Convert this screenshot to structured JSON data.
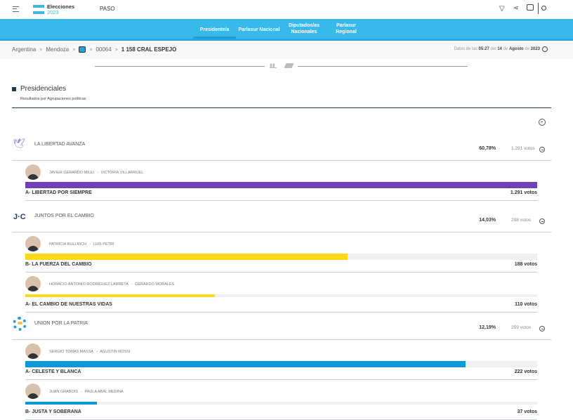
{
  "header": {
    "brand_title": "Elecciones",
    "brand_year": "2023",
    "election": "PASO",
    "icons": [
      "menu-icon",
      "filter-icon",
      "share-icon",
      "print-icon",
      "search-icon"
    ]
  },
  "nav": {
    "tabs": [
      {
        "label": "Presidente/a",
        "active": true
      },
      {
        "label": "Parlasur Nacional"
      },
      {
        "label": "Diputados/as Nacionales"
      },
      {
        "label": "Parlasur Regional"
      }
    ]
  },
  "breadcrumb": {
    "items": [
      "Argentina",
      "Mendoza",
      "00064",
      "1 158 CRAL ESPEJO"
    ],
    "separator": ">"
  },
  "update": {
    "prefix": "Datos de las",
    "time": "05:27",
    "del": "del",
    "day": "14",
    "de": "de",
    "month": "Agosto",
    "de2": "de",
    "year": "2023"
  },
  "section": {
    "title": "Presidenciales",
    "subtitle": "Resultados por Agrupaciones políticas"
  },
  "colors": {
    "nav": "#37b9e9",
    "lla": "#7040b5",
    "jxc": "#fcd817",
    "uxp": "#0b98d9"
  },
  "parties": [
    {
      "name": "LA LIBERTAD AVANZA",
      "percent": "60,78%",
      "votes": "1.291 votos",
      "color": "#7040b5",
      "logo": "dove-logo",
      "lists": [
        {
          "candidates": "JAVIER GERARDO MILEI",
          "vice": "VICTORIA VILLARRUEL",
          "list": "A- LIBERTAD POR SIEMPRE",
          "votes": "1.291 votos",
          "share": 100
        }
      ]
    },
    {
      "name": "JUNTOS POR EL CAMBIO",
      "percent": "14,03%",
      "votes": "298 votos",
      "color": "#fcd817",
      "logo": "jxc-logo",
      "lists": [
        {
          "candidates": "PATRICIA BULLRICH",
          "vice": "LUIS PETRI",
          "list": "B- LA FUERZA DEL CAMBIO",
          "votes": "188 votos",
          "share": 63
        },
        {
          "candidates": "HORACIO ANTONIO RODRIGUEZ LARRETA",
          "vice": "GERARDO MORALES",
          "list": "A- EL CAMBIO DE NUESTRAS VIDAS",
          "votes": "110 votos",
          "share": 37
        }
      ]
    },
    {
      "name": "UNION POR LA PATRIA",
      "percent": "12,19%",
      "votes": "259 votos",
      "color": "#0b98d9",
      "logo": "sun-logo",
      "lists": [
        {
          "candidates": "SERGIO TOMAS MASSA",
          "vice": "AGUSTIN ROSSI",
          "list": "A- CELESTE Y BLANCA",
          "votes": "222 votos",
          "share": 86
        },
        {
          "candidates": "JUAN GRABOIS",
          "vice": "PAULA ABAL MEDINA",
          "list": "B- JUSTA Y SOBERANA",
          "votes": "37 votos",
          "share": 14
        }
      ]
    }
  ]
}
